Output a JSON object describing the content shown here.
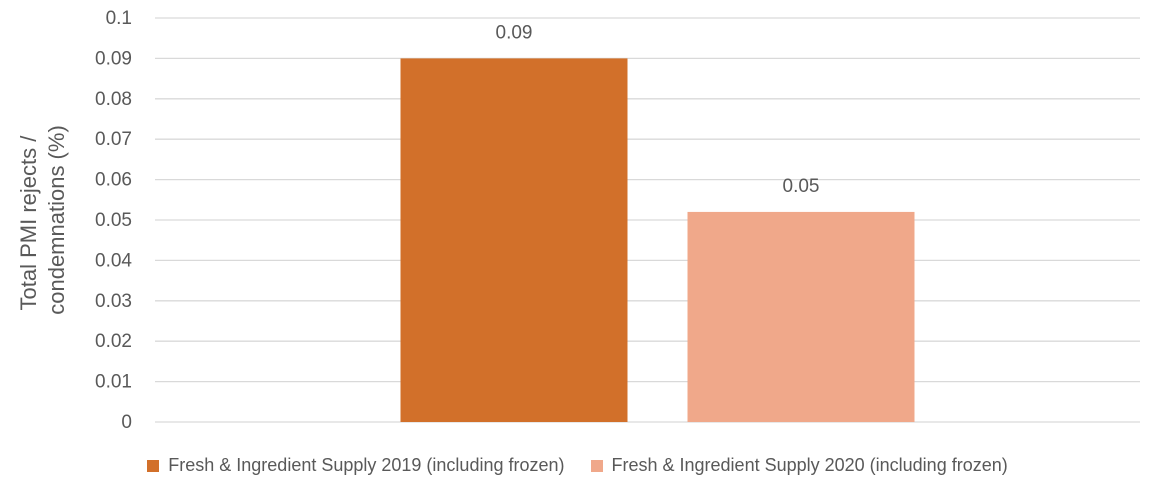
{
  "chart_data": {
    "type": "bar",
    "title": "",
    "xlabel": "",
    "ylabel": "Total PMI rejects / condemnations (%)",
    "ylabel_lines": [
      "Total PMI rejects /",
      "condemnations (%)"
    ],
    "ylim": [
      0,
      0.1
    ],
    "yticks": [
      0,
      0.01,
      0.02,
      0.03,
      0.04,
      0.05,
      0.06,
      0.07,
      0.08,
      0.09,
      0.1
    ],
    "ytick_labels": [
      "0",
      "0.01",
      "0.02",
      "0.03",
      "0.04",
      "0.05",
      "0.06",
      "0.07",
      "0.08",
      "0.09",
      "0.1"
    ],
    "grid": true,
    "legend_position": "bottom",
    "series": [
      {
        "name": "Fresh & Ingredient Supply 2019 (including frozen)",
        "value": 0.09,
        "label": "0.09",
        "color": "#D2702A"
      },
      {
        "name": "Fresh & Ingredient Supply 2020 (including frozen)",
        "value": 0.052,
        "label": "0.05",
        "color": "#F0A88A"
      }
    ]
  }
}
